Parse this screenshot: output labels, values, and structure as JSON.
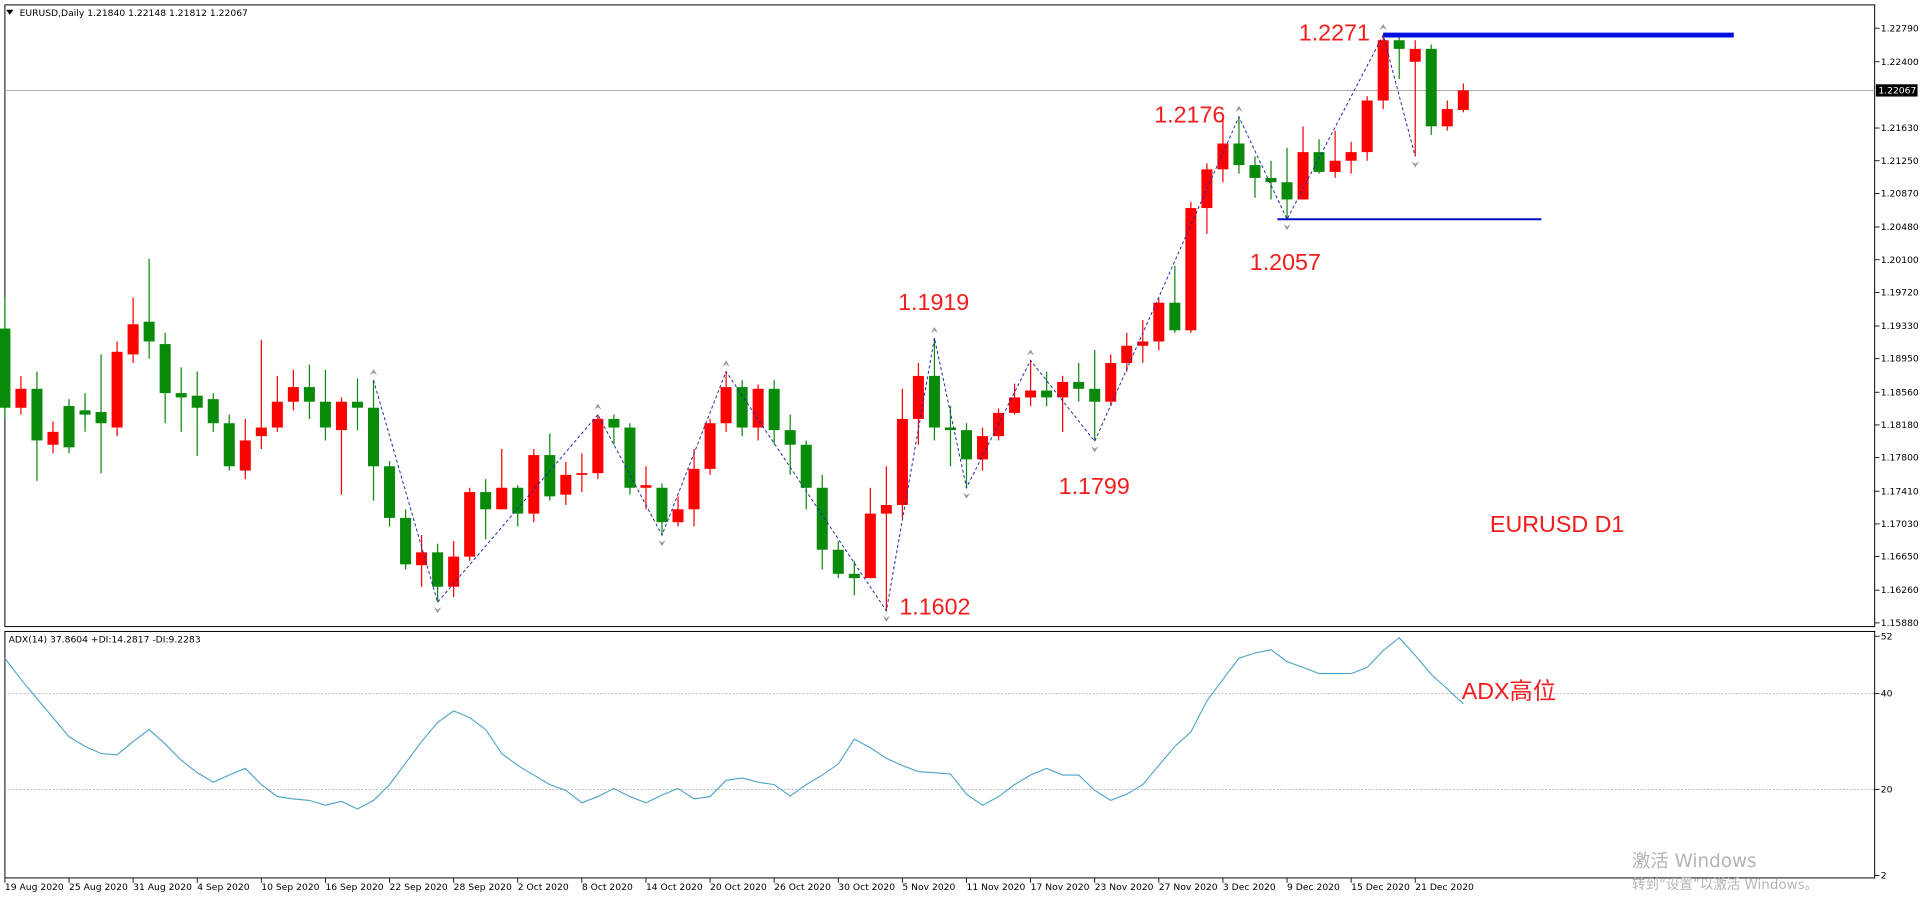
{
  "chart_data": [
    {
      "type": "candlestick",
      "title": "EURUSD,Daily  1.21840 1.22148 1.21812 1.22067",
      "categories": [
        "19 Aug 2020",
        null,
        null,
        null,
        "25 Aug 2020",
        null,
        null,
        null,
        "31 Aug 2020",
        null,
        null,
        null,
        "4 Sep 2020",
        null,
        null,
        null,
        "10 Sep 2020",
        null,
        null,
        null,
        "16 Sep 2020",
        null,
        null,
        null,
        "22 Sep 2020",
        null,
        null,
        null,
        "28 Sep 2020",
        null,
        null,
        null,
        "2 Oct 2020",
        null,
        null,
        null,
        "8 Oct 2020",
        null,
        null,
        null,
        "14 Oct 2020",
        null,
        null,
        null,
        "20 Oct 2020",
        null,
        null,
        null,
        "26 Oct 2020",
        null,
        null,
        null,
        "30 Oct 2020",
        null,
        null,
        null,
        "5 Nov 2020",
        null,
        null,
        null,
        "11 Nov 2020",
        null,
        null,
        null,
        "17 Nov 2020",
        null,
        null,
        null,
        "23 Nov 2020",
        null,
        null,
        null,
        "27 Nov 2020",
        null,
        null,
        null,
        "3 Dec 2020",
        null,
        null,
        null,
        "9 Dec 2020",
        null,
        null,
        null,
        "15 Dec 2020",
        null,
        null,
        null,
        "21 Dec 2020",
        null,
        null,
        null
      ],
      "open": [
        1.193,
        1.1838,
        1.186,
        1.1795,
        1.184,
        1.1835,
        1.1833,
        1.1815,
        1.19,
        1.1938,
        1.1912,
        1.1855,
        1.1852,
        1.1848,
        1.182,
        1.1765,
        1.1805,
        1.1815,
        1.1845,
        1.1862,
        1.1845,
        1.1812,
        1.1845,
        1.1838,
        1.177,
        1.171,
        1.1655,
        1.167,
        1.163,
        1.1665,
        1.174,
        1.172,
        1.1745,
        1.1715,
        1.1783,
        1.1737,
        1.176,
        1.1762,
        1.1825,
        1.1815,
        1.1745,
        1.1745,
        1.1705,
        1.172,
        1.1767,
        1.182,
        1.1862,
        1.1815,
        1.186,
        1.1812,
        1.1795,
        1.1745,
        1.1673,
        1.1645,
        1.164,
        1.1715,
        1.1725,
        1.1825,
        1.1875,
        1.1815,
        1.1812,
        1.1778,
        1.1805,
        1.1832,
        1.185,
        1.1858,
        1.185,
        1.1868,
        1.186,
        1.1845,
        1.189,
        1.191,
        1.1915,
        1.196,
        1.1928,
        1.207,
        1.2115,
        1.2145,
        1.212,
        1.2105,
        1.21,
        1.208,
        1.2135,
        1.2112,
        1.2125,
        1.2135,
        1.2195,
        1.2265,
        1.224,
        1.2255,
        1.2165,
        1.2184
      ],
      "high": [
        1.1966,
        1.1875,
        1.188,
        1.1822,
        1.1848,
        1.1855,
        1.19,
        1.1915,
        1.1966,
        1.2011,
        1.1925,
        1.1885,
        1.188,
        1.1855,
        1.183,
        1.1825,
        1.1917,
        1.1875,
        1.1882,
        1.1888,
        1.1882,
        1.185,
        1.1872,
        1.187,
        1.1776,
        1.172,
        1.169,
        1.168,
        1.1683,
        1.1745,
        1.1755,
        1.179,
        1.1748,
        1.179,
        1.1808,
        1.1775,
        1.1785,
        1.183,
        1.183,
        1.182,
        1.177,
        1.175,
        1.1735,
        1.179,
        1.1825,
        1.188,
        1.187,
        1.1865,
        1.187,
        1.183,
        1.18,
        1.176,
        1.1683,
        1.166,
        1.1745,
        1.177,
        1.186,
        1.189,
        1.1919,
        1.184,
        1.182,
        1.1815,
        1.1837,
        1.1866,
        1.1893,
        1.188,
        1.1875,
        1.189,
        1.1905,
        1.19,
        1.1925,
        1.194,
        1.1965,
        1.2003,
        1.2077,
        1.2122,
        1.2175,
        1.2176,
        1.213,
        1.2125,
        1.214,
        1.2165,
        1.215,
        1.216,
        1.2147,
        1.22,
        1.2271,
        1.227,
        1.2265,
        1.226,
        1.2195,
        1.22148
      ],
      "low": [
        1.1826,
        1.183,
        1.1753,
        1.1785,
        1.1785,
        1.181,
        1.1762,
        1.1805,
        1.189,
        1.1895,
        1.182,
        1.181,
        1.1782,
        1.181,
        1.1765,
        1.1755,
        1.179,
        1.181,
        1.1835,
        1.1825,
        1.18,
        1.1737,
        1.1812,
        1.173,
        1.17,
        1.165,
        1.163,
        1.1612,
        1.1618,
        1.166,
        1.1685,
        1.172,
        1.17,
        1.1705,
        1.173,
        1.1725,
        1.174,
        1.1755,
        1.1795,
        1.1737,
        1.172,
        1.169,
        1.17,
        1.17,
        1.176,
        1.181,
        1.1805,
        1.18,
        1.1795,
        1.176,
        1.172,
        1.165,
        1.164,
        1.162,
        1.164,
        1.1602,
        1.171,
        1.1795,
        1.18,
        1.177,
        1.1745,
        1.1765,
        1.18,
        1.183,
        1.184,
        1.184,
        1.181,
        1.1845,
        1.1799,
        1.184,
        1.188,
        1.189,
        1.1905,
        1.1925,
        1.1925,
        1.204,
        1.21,
        1.211,
        1.2082,
        1.208,
        1.2057,
        1.208,
        1.211,
        1.2105,
        1.211,
        1.2125,
        1.2185,
        1.222,
        1.213,
        1.2155,
        1.216,
        1.21812
      ],
      "close": [
        1.1838,
        1.186,
        1.18,
        1.181,
        1.1792,
        1.183,
        1.182,
        1.1903,
        1.1935,
        1.1915,
        1.1855,
        1.185,
        1.1838,
        1.182,
        1.177,
        1.18,
        1.1815,
        1.1845,
        1.1862,
        1.1845,
        1.1815,
        1.1845,
        1.1838,
        1.177,
        1.171,
        1.1656,
        1.167,
        1.163,
        1.1665,
        1.174,
        1.172,
        1.1745,
        1.1715,
        1.1783,
        1.1735,
        1.176,
        1.1762,
        1.1825,
        1.1815,
        1.1745,
        1.1748,
        1.1705,
        1.172,
        1.1767,
        1.182,
        1.1862,
        1.1815,
        1.186,
        1.1812,
        1.1795,
        1.1745,
        1.1673,
        1.1645,
        1.164,
        1.1715,
        1.1725,
        1.1825,
        1.1875,
        1.1815,
        1.1812,
        1.1778,
        1.1805,
        1.1832,
        1.185,
        1.1858,
        1.185,
        1.1868,
        1.186,
        1.1845,
        1.189,
        1.191,
        1.1915,
        1.196,
        1.1928,
        1.207,
        1.2115,
        1.2145,
        1.212,
        1.2105,
        1.21,
        1.208,
        1.2135,
        1.2112,
        1.2125,
        1.2135,
        1.2195,
        1.2265,
        1.2255,
        1.2255,
        1.2165,
        1.2185,
        1.22067
      ],
      "up_color": "#ff0000",
      "down_color": "#0a8a0a",
      "ylim": [
        1.158373,
        1.230607
      ],
      "yticks": [
        {
          "value": 1.2279,
          "label": "1.22790"
        },
        {
          "value": 1.224,
          "label": "1.22400"
        },
        {
          "value": 1.2163,
          "label": "1.21630"
        },
        {
          "value": 1.2125,
          "label": "1.21250"
        },
        {
          "value": 1.2087,
          "label": "1.20870"
        },
        {
          "value": 1.2048,
          "label": "1.20480"
        },
        {
          "value": 1.201,
          "label": "1.20100"
        },
        {
          "value": 1.1972,
          "label": "1.19720"
        },
        {
          "value": 1.1933,
          "label": "1.19330"
        },
        {
          "value": 1.1895,
          "label": "1.18950"
        },
        {
          "value": 1.1856,
          "label": "1.18560"
        },
        {
          "value": 1.1818,
          "label": "1.18180"
        },
        {
          "value": 1.178,
          "label": "1.17800"
        },
        {
          "value": 1.1741,
          "label": "1.17410"
        },
        {
          "value": 1.1703,
          "label": "1.17030"
        },
        {
          "value": 1.1665,
          "label": "1.16650"
        },
        {
          "value": 1.1626,
          "label": "1.16260"
        },
        {
          "value": 1.1588,
          "label": "1.15880"
        }
      ],
      "current_price": 1.22067,
      "zigzag": {
        "color": "#1f2aa8",
        "indices": [
          23,
          27,
          37,
          41,
          45,
          55,
          58,
          60,
          64,
          68,
          77,
          80,
          86,
          88
        ],
        "values": [
          1.187,
          1.1612,
          1.183,
          1.169,
          1.188,
          1.1602,
          1.1919,
          1.1745,
          1.1893,
          1.1799,
          1.2176,
          1.2057,
          1.2271,
          1.213
        ]
      },
      "levels": [
        {
          "value": 1.2271,
          "color": "#0010e0"
        },
        {
          "value": 1.2057,
          "color": "#0010c8"
        }
      ],
      "annotations": [
        "1.2271",
        "1.2176",
        "1.1919",
        "1.2057",
        "1.1799",
        "1.1602",
        "EURUSD D1"
      ]
    },
    {
      "type": "line",
      "title": "ADX(14) 37.8604 +DI:14.2817 -DI:9.2283",
      "color": "#4aa3c4",
      "values": [
        47.4,
        43,
        39,
        35,
        31,
        29,
        27.5,
        27.2,
        30,
        32.5,
        29.5,
        26.1,
        23.5,
        21.5,
        23,
        24.4,
        21,
        18.5,
        18,
        17.7,
        16.7,
        17.5,
        15.9,
        17.7,
        21,
        25.5,
        30,
        34,
        36.4,
        35,
        32.5,
        27.5,
        25,
        23,
        21,
        19.8,
        17.2,
        18.5,
        20.2,
        18.5,
        17.2,
        18.8,
        20.2,
        18,
        18.5,
        21.9,
        22.4,
        21.5,
        21,
        18.6,
        21,
        23,
        25.3,
        30.5,
        28.7,
        26.5,
        25,
        23.7,
        23.5,
        23.2,
        19,
        16.7,
        18.5,
        21,
        23,
        24.4,
        23,
        23,
        19.8,
        17.7,
        19,
        21,
        25,
        29,
        32,
        38.5,
        43,
        47.4,
        48.5,
        49.2,
        46.7,
        45.5,
        44.2,
        44.2,
        44.2,
        45.5,
        49,
        51.7,
        48,
        44,
        41,
        37.8604
      ],
      "ylim": [
        1.5,
        53
      ],
      "yticks": [
        2,
        20,
        40,
        52
      ],
      "level_lines": [
        20,
        40
      ],
      "annotations": [
        "ADX高位"
      ]
    }
  ],
  "watermark": [
    "激活 Windows",
    "转到“设置”以激活 Windows。"
  ]
}
